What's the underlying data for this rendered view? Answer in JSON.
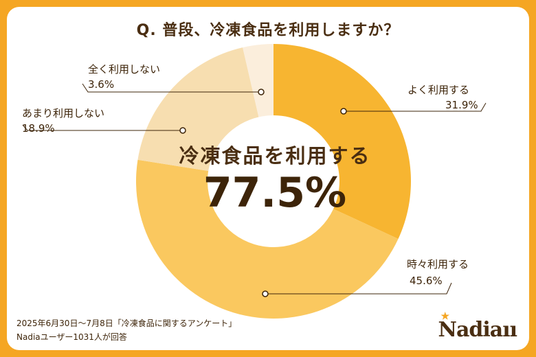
{
  "title": "Q. 普段、冷凍食品を利用しますか？",
  "center": {
    "label": "冷凍食品を利用する",
    "value": "77.5%"
  },
  "chart_data": {
    "type": "pie",
    "title": "Q. 普段、冷凍食品を利用しますか？",
    "unit": "%",
    "slices": [
      {
        "label": "よく利用する",
        "value": 31.9,
        "value_label": "31.9%",
        "color": "#F7B531"
      },
      {
        "label": "時々利用する",
        "value": 45.6,
        "value_label": "45.6%",
        "color": "#FAC85F"
      },
      {
        "label": "あまり利用しない",
        "value": 18.9,
        "value_label": "18.9%",
        "color": "#F7DEB0"
      },
      {
        "label": "全く利用しない",
        "value": 3.6,
        "value_label": "3.6%",
        "color": "#FBEEDC"
      }
    ]
  },
  "footer": {
    "line1": "2025年6月30日～7月8日「冷凍食品に関するアンケート」",
    "line2": "Nadiaユーザー1031人が回答"
  },
  "logo": "Nadiaıı"
}
